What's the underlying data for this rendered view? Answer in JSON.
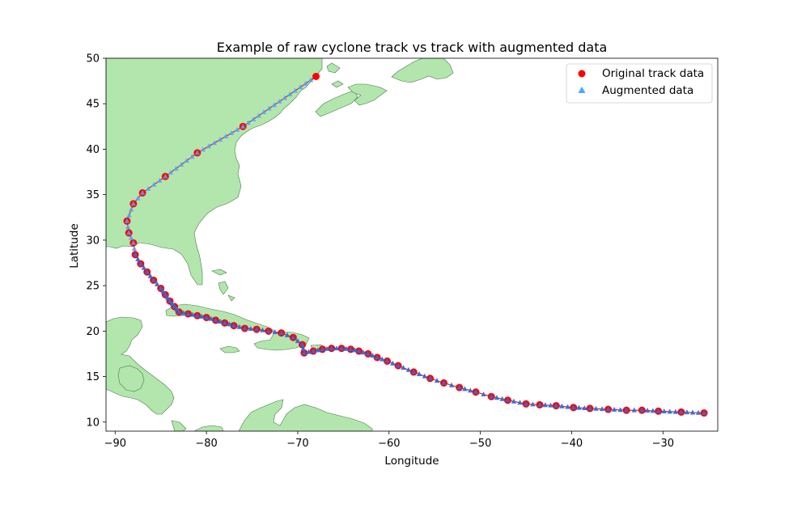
{
  "chart_data": {
    "type": "scatter",
    "title": "Example of raw cyclone track vs track with augmented data",
    "xlabel": "Longitude",
    "ylabel": "Latitude",
    "xlim": [
      -91,
      -24
    ],
    "ylim": [
      9,
      50
    ],
    "xticks": [
      -90,
      -80,
      -70,
      -60,
      -50,
      -40,
      -30
    ],
    "yticks": [
      10,
      15,
      20,
      25,
      30,
      35,
      40,
      45,
      50
    ],
    "xtick_labels": [
      "−90",
      "−80",
      "−70",
      "−60",
      "−50",
      "−40",
      "−30"
    ],
    "ytick_labels": [
      "10",
      "15",
      "20",
      "25",
      "30",
      "35",
      "40",
      "45",
      "50"
    ],
    "grid": false,
    "legend_position": "top-right",
    "colors": {
      "original": "#ff0000",
      "augmented": "#4da6ff",
      "augmented_dense": "#2a6fdb",
      "land": "#b2e6ad",
      "coast": "#4a7a4a",
      "track_line": "#ff0000"
    },
    "series": [
      {
        "name": "Original track data",
        "marker": "circle",
        "points": [
          [
            -25.5,
            11.0
          ],
          [
            -28.0,
            11.1
          ],
          [
            -30.5,
            11.2
          ],
          [
            -32.3,
            11.3
          ],
          [
            -34.0,
            11.3
          ],
          [
            -36.0,
            11.4
          ],
          [
            -38.0,
            11.5
          ],
          [
            -39.8,
            11.6
          ],
          [
            -41.7,
            11.8
          ],
          [
            -43.5,
            11.9
          ],
          [
            -45.0,
            12.0
          ],
          [
            -47.0,
            12.4
          ],
          [
            -48.8,
            12.8
          ],
          [
            -50.5,
            13.3
          ],
          [
            -52.3,
            13.8
          ],
          [
            -54.0,
            14.3
          ],
          [
            -55.5,
            14.8
          ],
          [
            -57.3,
            15.5
          ],
          [
            -59.0,
            16.2
          ],
          [
            -60.2,
            16.7
          ],
          [
            -61.3,
            17.1
          ],
          [
            -62.3,
            17.5
          ],
          [
            -63.3,
            17.8
          ],
          [
            -64.2,
            18.0
          ],
          [
            -65.2,
            18.1
          ],
          [
            -66.3,
            18.1
          ],
          [
            -67.3,
            18.0
          ],
          [
            -68.3,
            17.8
          ],
          [
            -69.3,
            17.6
          ],
          [
            -69.5,
            18.5
          ],
          [
            -70.5,
            19.3
          ],
          [
            -71.8,
            19.8
          ],
          [
            -73.2,
            20.0
          ],
          [
            -74.5,
            20.2
          ],
          [
            -75.8,
            20.3
          ],
          [
            -77.0,
            20.6
          ],
          [
            -78.0,
            20.9
          ],
          [
            -79.0,
            21.2
          ],
          [
            -80.0,
            21.5
          ],
          [
            -81.0,
            21.7
          ],
          [
            -82.0,
            21.9
          ],
          [
            -83.0,
            22.1
          ],
          [
            -83.5,
            22.7
          ],
          [
            -84.0,
            23.3
          ],
          [
            -84.5,
            24.0
          ],
          [
            -85.0,
            24.7
          ],
          [
            -85.8,
            25.6
          ],
          [
            -86.5,
            26.5
          ],
          [
            -87.2,
            27.4
          ],
          [
            -87.8,
            28.4
          ],
          [
            -88.0,
            29.7
          ],
          [
            -88.5,
            30.8
          ],
          [
            -88.7,
            32.1
          ],
          [
            -88.0,
            34.0
          ],
          [
            -87.0,
            35.2
          ],
          [
            -84.5,
            37.0
          ],
          [
            -81.0,
            39.6
          ],
          [
            -76.0,
            42.5
          ],
          [
            -68.0,
            48.0
          ]
        ]
      },
      {
        "name": "Augmented data",
        "marker": "triangle"
      }
    ]
  }
}
